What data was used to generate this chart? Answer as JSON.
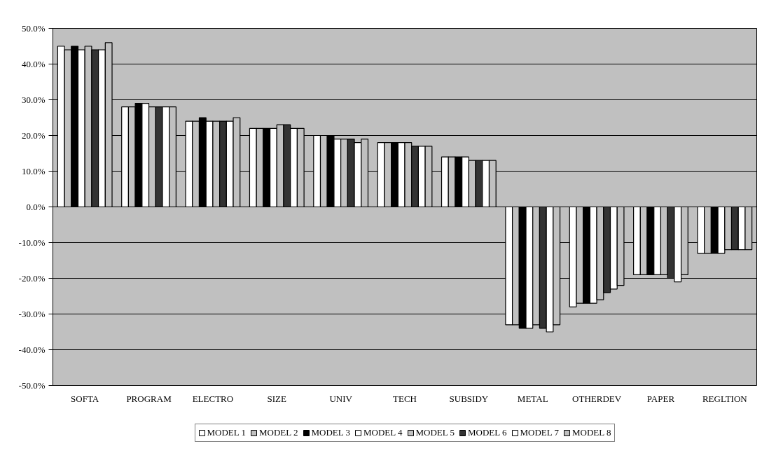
{
  "chart_data": {
    "type": "bar",
    "categories": [
      "SOFTA",
      "PROGRAM",
      "ELECTRO",
      "SIZE",
      "UNIV",
      "TECH",
      "SUBSIDY",
      "METAL",
      "OTHERDEV",
      "PAPER",
      "REGLTION"
    ],
    "series": [
      {
        "name": "MODEL 1",
        "color": "#ffffff",
        "values": [
          45,
          28,
          24,
          22,
          20,
          18,
          14,
          -33,
          -28,
          -19,
          -13
        ]
      },
      {
        "name": "MODEL 2",
        "color": "#c0c0c0",
        "values": [
          44,
          28,
          24,
          22,
          20,
          18,
          14,
          -33,
          -27,
          -19,
          -13
        ]
      },
      {
        "name": "MODEL 3",
        "color": "#000000",
        "values": [
          45,
          29,
          25,
          22,
          20,
          18,
          14,
          -34,
          -27,
          -19,
          -13
        ]
      },
      {
        "name": "MODEL 4",
        "color": "#ffffff",
        "values": [
          44,
          29,
          24,
          22,
          19,
          18,
          14,
          -34,
          -27,
          -19,
          -13
        ]
      },
      {
        "name": "MODEL 5",
        "color": "#c0c0c0",
        "values": [
          45,
          28,
          24,
          23,
          19,
          18,
          13,
          -33,
          -26,
          -19,
          -12
        ]
      },
      {
        "name": "MODEL 6",
        "color": "#333333",
        "values": [
          44,
          28,
          24,
          23,
          19,
          17,
          13,
          -34,
          -24,
          -20,
          -12
        ]
      },
      {
        "name": "MODEL 7",
        "color": "#ffffff",
        "values": [
          44,
          28,
          24,
          22,
          18,
          17,
          13,
          -35,
          -23,
          -21,
          -12
        ]
      },
      {
        "name": "MODEL 8",
        "color": "#c0c0c0",
        "values": [
          46,
          28,
          25,
          22,
          19,
          17,
          13,
          -33,
          -22,
          -19,
          -12
        ]
      }
    ],
    "ylim": [
      -50,
      50
    ],
    "yticks": [
      {
        "value": -50,
        "label": "-50.0%"
      },
      {
        "value": -40,
        "label": "-40.0%"
      },
      {
        "value": -30,
        "label": "-30.0%"
      },
      {
        "value": -20,
        "label": "-20.0%"
      },
      {
        "value": -10,
        "label": "-10.0%"
      },
      {
        "value": 0,
        "label": "0.0%"
      },
      {
        "value": 10,
        "label": "10.0%"
      },
      {
        "value": 20,
        "label": "20.0%"
      },
      {
        "value": 30,
        "label": "30.0%"
      },
      {
        "value": 40,
        "label": "40.0%"
      },
      {
        "value": 50,
        "label": "50.0%"
      }
    ],
    "grid": "y",
    "legend": "bottom"
  }
}
